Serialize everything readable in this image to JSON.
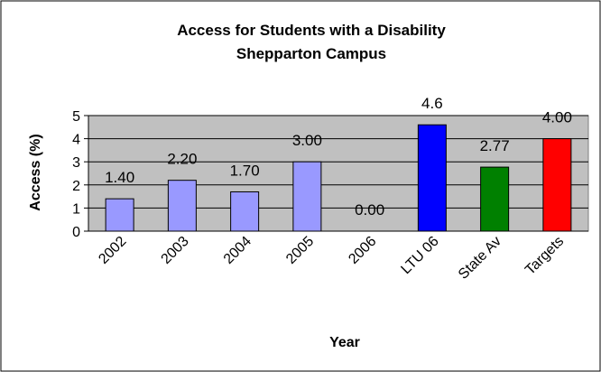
{
  "chart_data": {
    "type": "bar",
    "title": "Access for Students with a Disability",
    "subtitle": "Shepparton Campus",
    "xlabel": "Year",
    "ylabel": "Access (%)",
    "ylim": [
      0,
      5
    ],
    "yticks": [
      "0",
      "1",
      "2",
      "3",
      "4",
      "5"
    ],
    "grid": true,
    "legend": "none",
    "plot_background": "#c0c0c0",
    "categories": [
      "2002",
      "2003",
      "2004",
      "2005",
      "2006",
      "LTU 06",
      "State Av",
      "Targets"
    ],
    "values": [
      1.4,
      2.2,
      1.7,
      3.0,
      0.0,
      4.6,
      2.77,
      4.0
    ],
    "data_labels": [
      "1.40",
      "2.20",
      "1.70",
      "3.00",
      "0.00",
      "4.6",
      "2.77",
      "4.00"
    ],
    "bar_colors": [
      "#9999ff",
      "#9999ff",
      "#9999ff",
      "#9999ff",
      "#9999ff",
      "#0000ff",
      "#008000",
      "#ff0000"
    ]
  }
}
